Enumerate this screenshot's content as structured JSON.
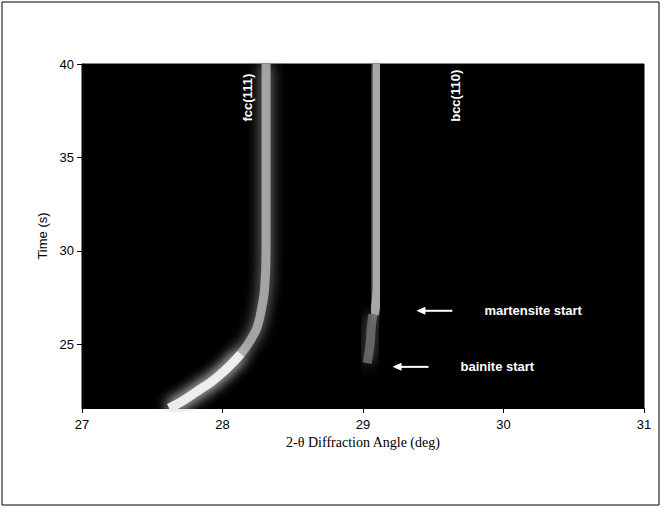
{
  "chart_data": {
    "type": "line",
    "x_label": "2-θ Diffraction Angle (deg)",
    "y_label": "Time (s)",
    "xlim": [
      27,
      31
    ],
    "xticks": [
      27,
      28,
      29,
      30,
      31
    ],
    "ylim": [
      21.6,
      40
    ],
    "yticks": [
      25,
      30,
      35,
      40
    ],
    "grid": false,
    "series": [
      {
        "color": "#b4b4b4",
        "x": [
          27.62,
          27.72,
          27.82,
          27.92,
          28.0,
          28.07,
          28.13,
          28.18,
          28.22,
          28.25,
          28.28,
          28.3,
          28.31,
          28.31,
          28.31
        ],
        "values": [
          21.6,
          22.0,
          22.5,
          23.0,
          23.5,
          24.0,
          24.5,
          25.0,
          25.5,
          26.0,
          27.0,
          28.0,
          30.0,
          35.0,
          40.0
        ]
      },
      {
        "color": "#f4f4f4",
        "x": [
          27.62,
          27.72,
          27.82,
          27.92,
          28.0,
          28.07,
          28.13
        ],
        "values": [
          21.6,
          22.0,
          22.5,
          23.0,
          23.5,
          24.0,
          24.5
        ]
      },
      {
        "color": "#6e6e6e",
        "x": [
          29.03,
          29.05,
          29.06,
          29.07
        ],
        "values": [
          24.0,
          25.0,
          26.0,
          26.6
        ]
      },
      {
        "color": "#b8b8b8",
        "x": [
          29.08,
          29.1,
          29.1,
          29.1,
          29.1
        ],
        "values": [
          26.6,
          28.0,
          30.0,
          35.0,
          40.0
        ]
      }
    ],
    "annotations": [
      {
        "text": "fcc(111)",
        "x": 28.18,
        "y": 38.2
      },
      {
        "text": "bcc(110)",
        "x": 29.66,
        "y": 38.3
      }
    ],
    "arrows": [
      {
        "text": "martensite start",
        "x": 29.38,
        "y": 26.8
      },
      {
        "text": "bainite start",
        "x": 29.21,
        "y": 23.8
      }
    ]
  }
}
